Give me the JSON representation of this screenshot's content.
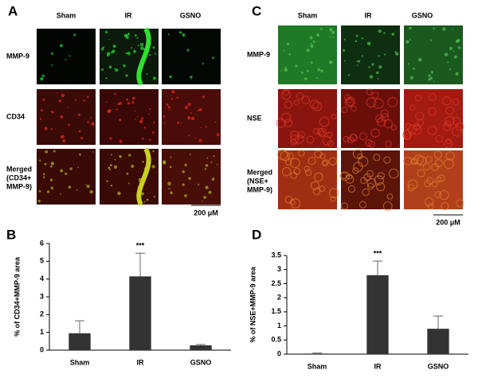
{
  "panels": [
    {
      "label": "A",
      "columns": [
        "Sham",
        "IR",
        "GSNO"
      ],
      "rows": [
        [
          "MMP-9"
        ],
        [
          "CD34"
        ],
        [
          "Merged",
          "(CD34+",
          "MMP-9)"
        ]
      ],
      "scale_bar": "200 μM"
    },
    {
      "label": "C",
      "columns": [
        "Sham",
        "IR",
        "GSNO"
      ],
      "rows": [
        [
          "MMP-9"
        ],
        [
          "NSE"
        ],
        [
          "Merged",
          "(NSE+",
          "MMP-9)"
        ]
      ],
      "scale_bar": "200 μM"
    }
  ],
  "chart_data": [
    {
      "type": "bar",
      "label": "B",
      "y_label": "% of CD34+MMP-9 area",
      "categories": [
        "Sham",
        "IR",
        "GSNO"
      ],
      "values": [
        0.95,
        4.15,
        0.27
      ],
      "errors": [
        0.7,
        1.3,
        0.05
      ],
      "annotation": "***",
      "color": "#333333",
      "ylim": [
        0,
        6
      ],
      "yticks": [
        0,
        1,
        2,
        3,
        4,
        5,
        6
      ]
    },
    {
      "type": "bar",
      "label": "D",
      "y_label": "% of NSE+MMP-9 area",
      "categories": [
        "Sham",
        "IR",
        "GSNO"
      ],
      "values": [
        0.02,
        2.8,
        0.9
      ],
      "errors": [
        0.02,
        0.5,
        0.45
      ],
      "annotation": "***",
      "color": "#333333",
      "ylim": [
        0,
        3.5
      ],
      "yticks": [
        0,
        0.5,
        1,
        1.5,
        2,
        2.5,
        3,
        3.5
      ]
    }
  ]
}
